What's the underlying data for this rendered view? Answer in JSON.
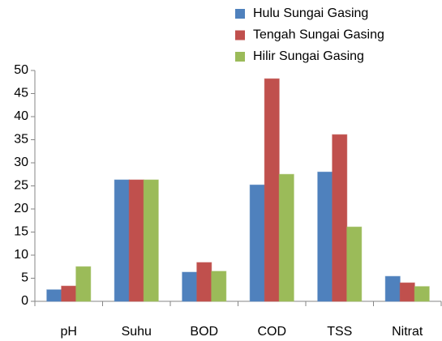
{
  "chart_data": {
    "type": "bar",
    "categories": [
      "pH",
      "Suhu",
      "BOD",
      "COD",
      "TSS",
      "Nitrat"
    ],
    "series": [
      {
        "name": "Hulu Sungai Gasing",
        "color": "#4f81bd",
        "values": [
          2.5,
          26.3,
          6.3,
          25.2,
          28,
          5.4
        ]
      },
      {
        "name": "Tengah Sungai Gasing",
        "color": "#c0504d",
        "values": [
          3.3,
          26.3,
          8.4,
          48.2,
          36.1,
          4
        ]
      },
      {
        "name": "Hilir Sungai Gasing",
        "color": "#9bbb59",
        "values": [
          7.5,
          26.3,
          6.5,
          27.5,
          16.1,
          3.2
        ]
      }
    ],
    "ylim": [
      0,
      50
    ],
    "yticks": [
      0,
      5,
      10,
      15,
      20,
      25,
      30,
      35,
      40,
      45,
      50
    ],
    "grid": false,
    "legend": "top-right"
  }
}
